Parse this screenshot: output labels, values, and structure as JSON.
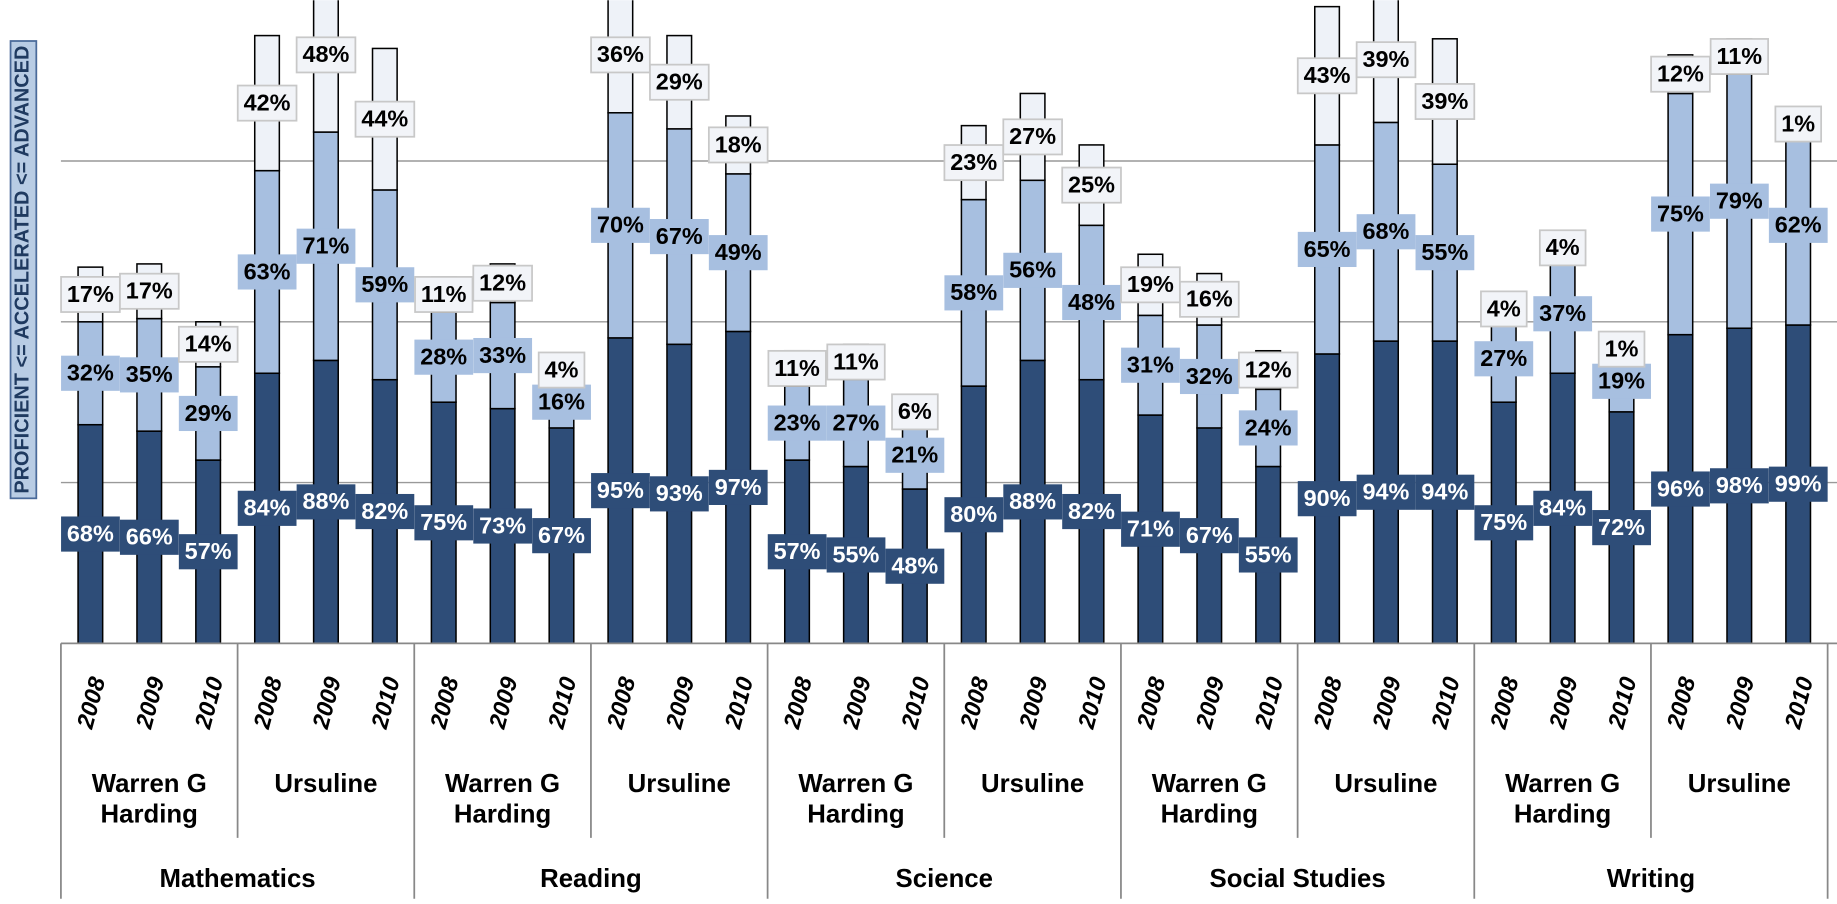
{
  "chart_data": {
    "type": "stacked-bar",
    "y_axis_label": "PROFICIENT <= ACCELERATED <= ADVANCED",
    "categories": [
      "2008",
      "2009",
      "2010",
      "2008",
      "2009",
      "2010",
      "2008",
      "2009",
      "2010",
      "2008",
      "2009",
      "2010",
      "2008",
      "2009",
      "2010",
      "2008",
      "2009",
      "2010",
      "2008",
      "2009",
      "2010",
      "2008",
      "2009",
      "2010",
      "2008",
      "2009",
      "2010",
      "2008",
      "2009",
      "2010"
    ],
    "schools": [
      "Warren G Harding",
      "Ursuline",
      "Warren G Harding",
      "Ursuline",
      "Warren G Harding",
      "Ursuline",
      "Warren G Harding",
      "Ursuline",
      "Warren G Harding",
      "Ursuline"
    ],
    "subjects": [
      "Mathematics",
      "Reading",
      "Science",
      "Social Studies",
      "Writing"
    ],
    "ylim": [
      0,
      200
    ],
    "yticks": [
      0,
      50,
      100,
      150,
      200
    ],
    "grid": true,
    "series": [
      {
        "color": "#2e4d78",
        "values": [
          68,
          66,
          57,
          84,
          88,
          82,
          75,
          73,
          67,
          95,
          93,
          97,
          57,
          55,
          48,
          80,
          88,
          82,
          71,
          67,
          55,
          90,
          94,
          94,
          75,
          84,
          72,
          96,
          98,
          99
        ],
        "value_labels": [
          "68%",
          "66%",
          "57%",
          "84%",
          "88%",
          "82%",
          "75%",
          "73%",
          "67%",
          "95%",
          "93%",
          "97%",
          "57%",
          "55%",
          "48%",
          "80%",
          "88%",
          "82%",
          "71%",
          "67%",
          "55%",
          "90%",
          "94%",
          "94%",
          "75%",
          "84%",
          "72%",
          "96%",
          "98%",
          "99%"
        ]
      },
      {
        "color": "#a7bfe0",
        "values": [
          32,
          35,
          29,
          63,
          71,
          59,
          28,
          33,
          16,
          70,
          67,
          49,
          23,
          27,
          21,
          58,
          56,
          48,
          31,
          32,
          24,
          65,
          68,
          55,
          27,
          37,
          19,
          75,
          79,
          62
        ],
        "value_labels": [
          "32%",
          "35%",
          "29%",
          "63%",
          "71%",
          "59%",
          "28%",
          "33%",
          "16%",
          "70%",
          "67%",
          "49%",
          "23%",
          "27%",
          "21%",
          "58%",
          "56%",
          "48%",
          "31%",
          "32%",
          "24%",
          "65%",
          "68%",
          "55%",
          "27%",
          "37%",
          "19%",
          "75%",
          "79%",
          "62%"
        ]
      },
      {
        "color": "#eef2f8",
        "values": [
          17,
          17,
          14,
          42,
          48,
          44,
          11,
          12,
          4,
          36,
          29,
          18,
          11,
          11,
          6,
          23,
          27,
          25,
          19,
          16,
          12,
          43,
          39,
          39,
          4,
          4,
          1,
          12,
          11,
          1
        ],
        "value_labels": [
          "17%",
          "17%",
          "14%",
          "42%",
          "48%",
          "44%",
          "11%",
          "12%",
          "4%",
          "36%",
          "29%",
          "18%",
          "11%",
          "11%",
          "6%",
          "23%",
          "27%",
          "25%",
          "19%",
          "16%",
          "12%",
          "43%",
          "39%",
          "39%",
          "4%",
          "4%",
          "1%",
          "12%",
          "11%",
          "1%"
        ]
      }
    ]
  }
}
